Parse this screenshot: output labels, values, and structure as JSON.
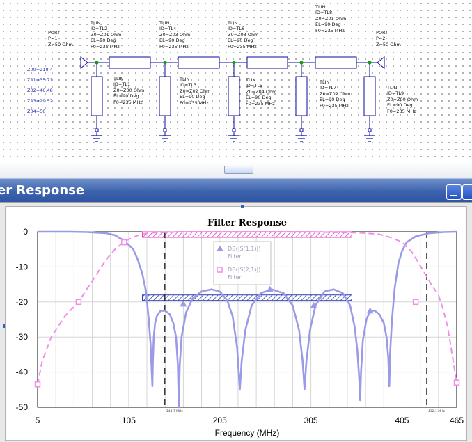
{
  "schematic": {
    "port1": [
      "PORT",
      "P=1",
      "Z=50 Ohm"
    ],
    "port2": [
      "PORT",
      "P=2",
      "Z=50 Ohm"
    ],
    "series": [
      [
        "TLIN",
        "ID=TL2",
        "Z0=Z01 Ohm",
        "EL=90 Deg",
        "F0=235 MHz"
      ],
      [
        "TLIN",
        "ID=TL4",
        "Z0=Z03 Ohm",
        "EL=90 Deg",
        "F0=235 MHz"
      ],
      [
        "TLIN",
        "ID=TL6",
        "Z0=Z03 Ohm",
        "EL=90 Deg",
        "F0=235 MHz"
      ],
      [
        "TLIN",
        "ID=TL8",
        "Z0=Z01 Ohm",
        "EL=90 Deg",
        "F0=235 MHz"
      ]
    ],
    "stubs": [
      [
        "TLIN",
        "ID=TL1",
        "Z0=Z00 Ohm",
        "EL=90 Deg",
        "F0=235 MHz"
      ],
      [
        "TLIN",
        "ID=TL3",
        "Z0=Z02 Ohm",
        "EL=90 Deg",
        "F0=235 MHz"
      ],
      [
        "TLIN",
        "ID=TL5",
        "Z0=Z04 Ohm",
        "EL=90 Deg",
        "F0=235 MHz"
      ],
      [
        "TLIN",
        "ID=TL7",
        "Z0=Z02 Ohm",
        "EL=90 Deg",
        "F0=235 MHz"
      ],
      [
        "TLIN",
        "ID=TL9",
        "Z0=Z00 Ohm",
        "EL=90 Deg",
        "F0=235 MHz"
      ]
    ],
    "equations": [
      "Z00=218.4",
      "Z01=35.71",
      "Z02=46.48",
      "Z03=29.52",
      "Z04=50"
    ]
  },
  "window": {
    "title": "er Response"
  },
  "chart_data": {
    "type": "line",
    "title": "Filter Response",
    "xlabel": "Frequency (MHz)",
    "ylabel": "",
    "xlim": [
      5,
      465
    ],
    "ylim": [
      -50,
      0
    ],
    "x_ticks": [
      "5",
      "105",
      "205",
      "305",
      "405",
      "465"
    ],
    "y_ticks": [
      "0",
      "-10",
      "-20",
      "-30",
      "-40",
      "-50"
    ],
    "grid": true,
    "legend": [
      {
        "name": "DB(|S(1,1)|)",
        "sub": "Filter",
        "color": "#9a9ae8",
        "marker": "triangle"
      },
      {
        "name": "DB(|S(2,1)|)",
        "sub": "Filter",
        "color": "#f08ee8",
        "marker": "square"
      }
    ],
    "markers": [
      {
        "x": 144.7,
        "label": "144.7 MHz"
      },
      {
        "x": 432.1,
        "label": "432.1 MHz"
      }
    ],
    "goals": [
      {
        "x1": 120,
        "x2": 350,
        "y": 0,
        "color": "#e040c0"
      },
      {
        "x1": 120,
        "x2": 350,
        "y": -18,
        "color": "#3040b0"
      }
    ],
    "series": [
      {
        "name": "DB(|S(1,1)|)",
        "points": [
          [
            5,
            0
          ],
          [
            20,
            0
          ],
          [
            40,
            0
          ],
          [
            60,
            -0.1
          ],
          [
            80,
            -0.4
          ],
          [
            90,
            -1
          ],
          [
            100,
            -2.5
          ],
          [
            110,
            -5
          ],
          [
            115,
            -8
          ],
          [
            120,
            -12
          ],
          [
            124,
            -17
          ],
          [
            127,
            -25
          ],
          [
            129,
            -32
          ],
          [
            130,
            -38
          ],
          [
            131,
            -44
          ],
          [
            131.5,
            -37
          ],
          [
            132.5,
            -30
          ],
          [
            134,
            -26
          ],
          [
            136,
            -24
          ],
          [
            140,
            -22.5
          ],
          [
            145,
            -22.5
          ],
          [
            150,
            -23.5
          ],
          [
            154,
            -26
          ],
          [
            157,
            -30
          ],
          [
            159,
            -38
          ],
          [
            160,
            -50
          ],
          [
            161,
            -38
          ],
          [
            163,
            -30
          ],
          [
            168,
            -23
          ],
          [
            175,
            -19
          ],
          [
            185,
            -17
          ],
          [
            196,
            -16.4
          ],
          [
            205,
            -17
          ],
          [
            213,
            -19.5
          ],
          [
            219,
            -24
          ],
          [
            224,
            -33
          ],
          [
            227,
            -45
          ],
          [
            229,
            -37
          ],
          [
            233,
            -28
          ],
          [
            240,
            -21
          ],
          [
            250,
            -17.5
          ],
          [
            262,
            -16.4
          ],
          [
            275,
            -17.5
          ],
          [
            285,
            -21
          ],
          [
            292,
            -28
          ],
          [
            296,
            -37
          ],
          [
            298,
            -45
          ],
          [
            300,
            -37
          ],
          [
            304,
            -28
          ],
          [
            310,
            -21
          ],
          [
            320,
            -17
          ],
          [
            330,
            -16.4
          ],
          [
            340,
            -17.5
          ],
          [
            348,
            -21
          ],
          [
            353,
            -27
          ],
          [
            356,
            -34
          ],
          [
            358,
            -42
          ],
          [
            359,
            -48
          ],
          [
            360,
            -40
          ],
          [
            362,
            -31
          ],
          [
            366,
            -25
          ],
          [
            370,
            -22.5
          ],
          [
            375,
            -22.5
          ],
          [
            380,
            -23.5
          ],
          [
            385,
            -26
          ],
          [
            388,
            -30
          ],
          [
            390,
            -36
          ],
          [
            391,
            -44
          ],
          [
            392,
            -34
          ],
          [
            394,
            -25
          ],
          [
            397,
            -16
          ],
          [
            401,
            -9
          ],
          [
            405,
            -5.5
          ],
          [
            410,
            -3
          ],
          [
            420,
            -1.3
          ],
          [
            435,
            -0.4
          ],
          [
            450,
            -0.1
          ],
          [
            465,
            0
          ]
        ]
      },
      {
        "name": "DB(|S(2,1)|)",
        "points": [
          [
            5,
            -43.5
          ],
          [
            10,
            -37
          ],
          [
            20,
            -30
          ],
          [
            35,
            -24
          ],
          [
            50,
            -20
          ],
          [
            60,
            -16
          ],
          [
            70,
            -12
          ],
          [
            80,
            -8
          ],
          [
            90,
            -5
          ],
          [
            100,
            -2.8
          ],
          [
            110,
            -1.5
          ],
          [
            120,
            -0.6
          ],
          [
            130,
            -0.3
          ],
          [
            160,
            0
          ],
          [
            300,
            0
          ],
          [
            360,
            -0.3
          ],
          [
            380,
            -0.7
          ],
          [
            395,
            -1.8
          ],
          [
            405,
            -3
          ],
          [
            415,
            -5.5
          ],
          [
            420,
            -7.5
          ],
          [
            428,
            -11
          ],
          [
            437,
            -15
          ],
          [
            445,
            -18
          ],
          [
            450,
            -22
          ],
          [
            455,
            -27
          ],
          [
            460,
            -35
          ],
          [
            465,
            -43
          ]
        ]
      }
    ]
  }
}
